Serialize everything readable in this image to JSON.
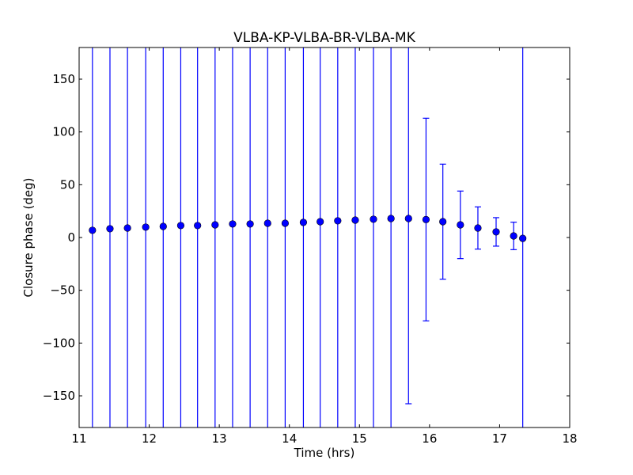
{
  "chart_data": {
    "type": "scatter",
    "title": "VLBA-KP-VLBA-BR-VLBA-MK",
    "xlabel": "Time (hrs)",
    "ylabel": "Closure phase (deg)",
    "xlim": [
      11,
      18
    ],
    "ylim": [
      -180,
      180
    ],
    "xticks": [
      11,
      12,
      13,
      14,
      15,
      16,
      17,
      18
    ],
    "xtick_labels": [
      "11",
      "12",
      "13",
      "14",
      "15",
      "16",
      "17",
      "18"
    ],
    "yticks": [
      -150,
      -100,
      -50,
      0,
      50,
      100,
      150
    ],
    "ytick_labels": [
      "−150",
      "−100",
      "−50",
      "0",
      "50",
      "100",
      "150"
    ],
    "grid": false,
    "color": "#0000ff",
    "series": [
      {
        "name": "closure phase",
        "x": [
          11.19,
          11.44,
          11.69,
          11.95,
          12.2,
          12.45,
          12.69,
          12.94,
          13.19,
          13.44,
          13.69,
          13.94,
          14.2,
          14.44,
          14.69,
          14.94,
          15.2,
          15.45,
          15.7,
          15.95,
          16.19,
          16.44,
          16.69,
          16.95,
          17.2,
          17.33
        ],
        "y": [
          6.8,
          8.3,
          9.0,
          9.8,
          10.5,
          11.3,
          11.3,
          12.0,
          12.8,
          12.8,
          13.5,
          13.5,
          14.3,
          15.0,
          15.8,
          16.5,
          17.3,
          18.0,
          18.0,
          17.0,
          15.0,
          12.0,
          9.0,
          5.3,
          1.5,
          -0.8
        ],
        "yerr": [
          500,
          500,
          500,
          500,
          500,
          500,
          500,
          500,
          500,
          500,
          500,
          500,
          500,
          500,
          500,
          500,
          500,
          500,
          175.5,
          96,
          54.5,
          32,
          20,
          13.5,
          13,
          500
        ]
      }
    ]
  }
}
